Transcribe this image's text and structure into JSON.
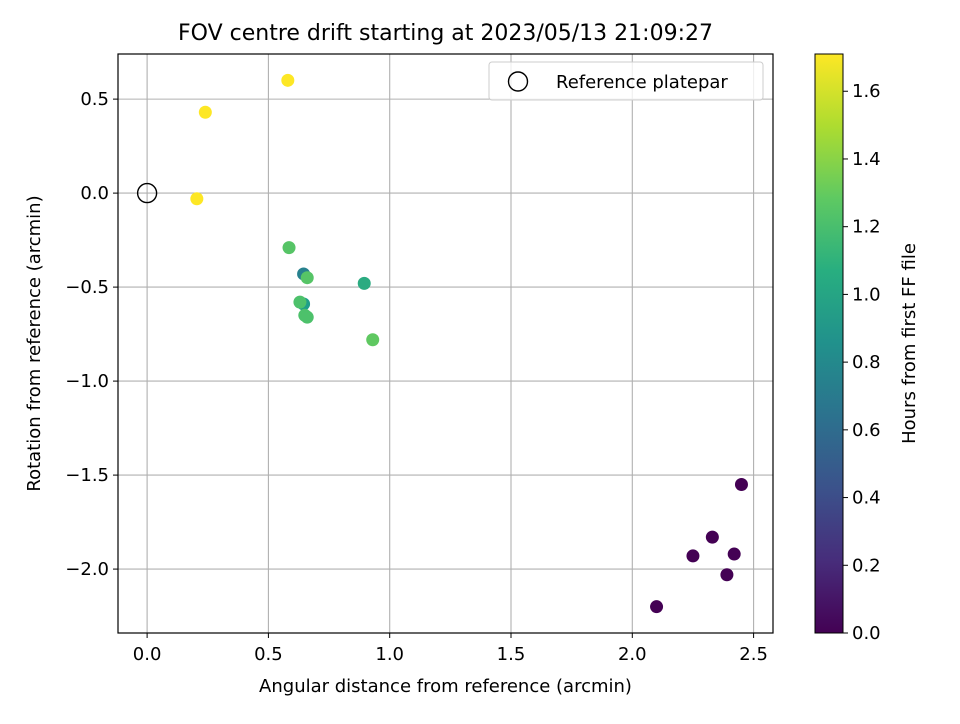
{
  "chart_data": {
    "type": "scatter",
    "title": "FOV centre drift starting at 2023/05/13 21:09:27",
    "xlabel": "Angular distance from reference (arcmin)",
    "ylabel": "Rotation from reference (arcmin)",
    "xlim": [
      -0.12,
      2.58
    ],
    "ylim": [
      -2.34,
      0.74
    ],
    "xticks": [
      0.0,
      0.5,
      1.0,
      1.5,
      2.0,
      2.5
    ],
    "xtick_labels": [
      "0.0",
      "0.5",
      "1.0",
      "1.5",
      "2.0",
      "2.5"
    ],
    "yticks": [
      0.5,
      0.0,
      -0.5,
      -1.0,
      -1.5,
      -2.0
    ],
    "ytick_labels": [
      "0.5",
      "0.0",
      "−0.5",
      "−1.0",
      "−1.5",
      "−2.0"
    ],
    "grid": true,
    "legend": {
      "placement": "top-right",
      "entries": [
        "Reference platepar"
      ]
    },
    "reference_point": {
      "x": 0.0,
      "y": 0.0
    },
    "colorbar": {
      "label": "Hours from first FF file",
      "colormap": "viridis",
      "range": [
        0.0,
        1.71
      ],
      "ticks": [
        0.0,
        0.2,
        0.4,
        0.6,
        0.8,
        1.0,
        1.2,
        1.4,
        1.6
      ],
      "tick_labels": [
        "0.0",
        "0.2",
        "0.4",
        "0.6",
        "0.8",
        "1.0",
        "1.2",
        "1.4",
        "1.6"
      ]
    },
    "points": [
      {
        "x": 2.1,
        "y": -2.2,
        "c": 0.0
      },
      {
        "x": 2.25,
        "y": -1.93,
        "c": 0.0
      },
      {
        "x": 2.33,
        "y": -1.83,
        "c": 0.0
      },
      {
        "x": 2.39,
        "y": -2.03,
        "c": 0.0
      },
      {
        "x": 2.42,
        "y": -1.92,
        "c": 0.0
      },
      {
        "x": 2.45,
        "y": -1.55,
        "c": 0.0
      },
      {
        "x": 0.645,
        "y": -0.43,
        "c": 0.75
      },
      {
        "x": 0.645,
        "y": -0.59,
        "c": 0.95
      },
      {
        "x": 0.895,
        "y": -0.48,
        "c": 1.05
      },
      {
        "x": 0.63,
        "y": -0.58,
        "c": 1.22
      },
      {
        "x": 0.65,
        "y": -0.65,
        "c": 1.22
      },
      {
        "x": 0.66,
        "y": -0.66,
        "c": 1.22
      },
      {
        "x": 0.66,
        "y": -0.45,
        "c": 1.25
      },
      {
        "x": 0.585,
        "y": -0.29,
        "c": 1.25
      },
      {
        "x": 0.93,
        "y": -0.78,
        "c": 1.28
      },
      {
        "x": 0.205,
        "y": -0.03,
        "c": 1.71
      },
      {
        "x": 0.24,
        "y": 0.43,
        "c": 1.71
      },
      {
        "x": 0.58,
        "y": 0.6,
        "c": 1.71
      }
    ]
  }
}
